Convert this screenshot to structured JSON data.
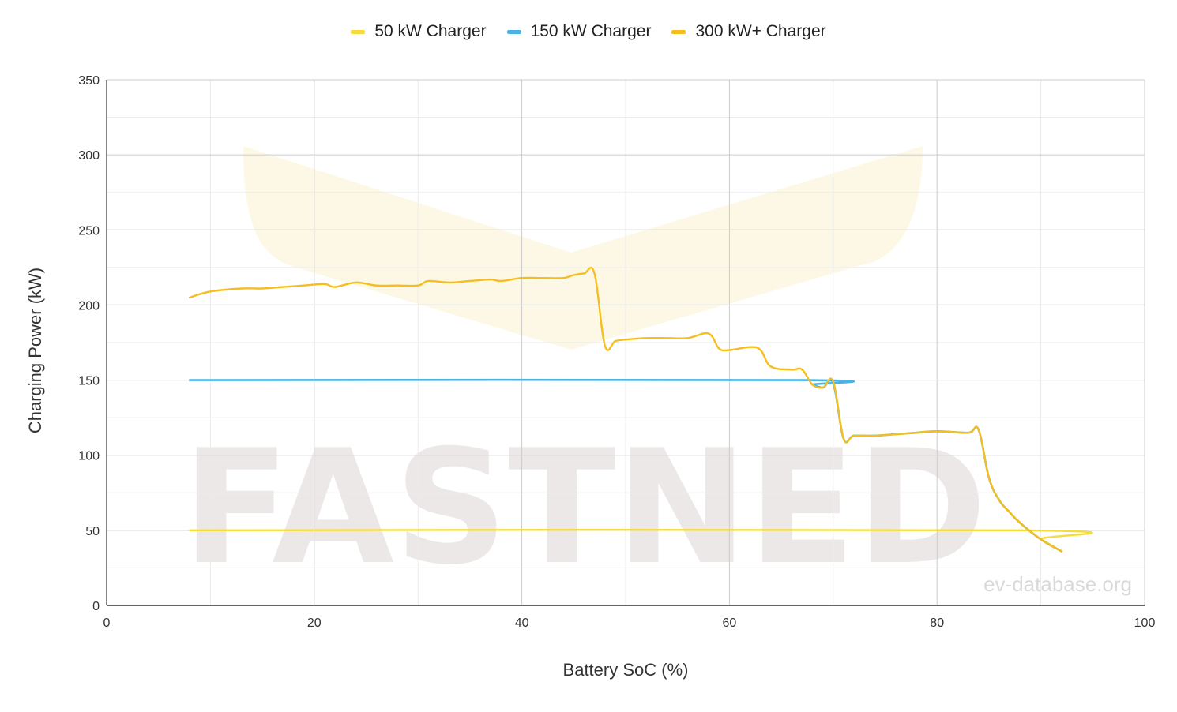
{
  "chart_data": {
    "type": "line",
    "title": "",
    "xlabel": "Battery SoC (%)",
    "ylabel": "Charging Power (kW)",
    "xlim": [
      0,
      100
    ],
    "ylim": [
      0,
      350
    ],
    "x_ticks": [
      0,
      20,
      40,
      60,
      80,
      100
    ],
    "y_ticks": [
      0,
      50,
      100,
      150,
      200,
      250,
      300,
      350
    ],
    "grid": true,
    "legend_position": "top-center",
    "watermark": "FASTNED",
    "credit": "ev-database.org",
    "series": [
      {
        "name": "50 kW Charger",
        "color": "#f5dc3c",
        "x": [
          8,
          88,
          90,
          92
        ],
        "y": [
          50,
          50,
          44,
          36
        ]
      },
      {
        "name": "150 kW Charger",
        "color": "#4ab3e2",
        "x": [
          8,
          67,
          68,
          69,
          70,
          71,
          72,
          74,
          76,
          78,
          80,
          83,
          84,
          85,
          86,
          87,
          88,
          90,
          92
        ],
        "y": [
          150,
          150,
          147,
          145,
          148,
          111,
          113,
          113,
          114,
          115,
          116,
          115,
          117,
          85,
          70,
          62,
          55,
          44,
          36
        ]
      },
      {
        "name": "300 kW+ Charger",
        "color": "#f5be1e",
        "x": [
          8,
          10,
          13,
          15,
          17,
          19,
          21,
          22,
          24,
          26,
          28,
          30,
          31,
          33,
          35,
          37,
          38,
          40,
          42,
          44,
          45,
          46,
          47,
          48,
          49,
          50,
          52,
          54,
          56,
          58,
          59,
          60,
          62,
          63,
          64,
          66,
          67,
          68,
          69,
          70,
          71,
          72,
          74,
          76,
          78,
          80,
          83,
          84,
          85,
          86,
          87,
          88,
          90,
          92
        ],
        "y": [
          205,
          209,
          211,
          211,
          212,
          213,
          214,
          212,
          215,
          213,
          213,
          213,
          216,
          215,
          216,
          217,
          216,
          218,
          218,
          218,
          220,
          221,
          221,
          173,
          176,
          177,
          178,
          178,
          178,
          181,
          171,
          170,
          172,
          170,
          159,
          157,
          157,
          147,
          145,
          149,
          111,
          113,
          113,
          114,
          115,
          116,
          115,
          117,
          85,
          70,
          62,
          55,
          44,
          36
        ]
      }
    ]
  }
}
